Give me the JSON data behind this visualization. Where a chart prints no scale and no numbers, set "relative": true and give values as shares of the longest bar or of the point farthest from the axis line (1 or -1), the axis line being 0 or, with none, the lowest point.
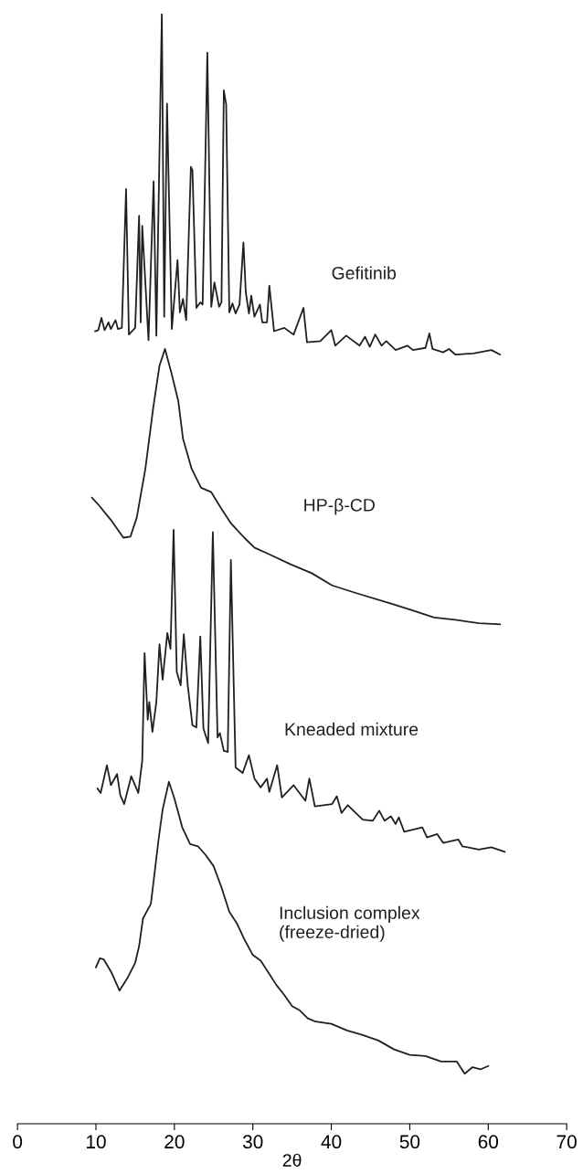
{
  "chart_data": {
    "type": "line",
    "relative": true,
    "xlabel": "2θ",
    "xlim": [
      0,
      70
    ],
    "xticks": [
      0,
      10,
      20,
      30,
      40,
      50,
      60,
      70
    ],
    "grid": false,
    "legend": false,
    "marker": "none",
    "line_style": "solid",
    "tick_labels": "x",
    "series": [
      {
        "name": "Gefitinib",
        "color": "#231f20",
        "x": [
          9.9,
          10.3,
          10.7,
          11.1,
          11.6,
          11.9,
          12.5,
          12.8,
          13.3,
          13.84,
          14.2,
          15.0,
          15.5,
          15.7,
          15.9,
          16.7,
          17.35,
          17.7,
          18.4,
          18.7,
          19.06,
          19.67,
          20.4,
          20.7,
          21.1,
          21.5,
          22.1,
          22.3,
          22.8,
          23.3,
          23.6,
          24.2,
          24.7,
          25.1,
          25.7,
          26.0,
          26.3,
          26.6,
          27.0,
          27.4,
          27.8,
          28.3,
          28.8,
          29.1,
          29.5,
          29.8,
          30.2,
          30.9,
          31.2,
          31.8,
          32.1,
          32.7,
          34.0,
          35.2,
          36.45,
          36.9,
          38.6,
          40.0,
          40.5,
          41.9,
          43.6,
          44.3,
          44.9,
          45.6,
          46.4,
          47.0,
          48.2,
          49.7,
          50.4,
          52.0,
          52.5,
          52.9,
          54.25,
          55.0,
          55.8,
          58.1,
          60.4,
          61.5
        ],
        "values": [
          0.714,
          0.715,
          0.726,
          0.715,
          0.722,
          0.716,
          0.724,
          0.716,
          0.717,
          0.842,
          0.711,
          0.717,
          0.818,
          0.722,
          0.809,
          0.706,
          0.849,
          0.71,
          1.0,
          0.727,
          0.919,
          0.716,
          0.778,
          0.731,
          0.743,
          0.724,
          0.862,
          0.859,
          0.735,
          0.74,
          0.738,
          0.965,
          0.736,
          0.758,
          0.736,
          0.74,
          0.931,
          0.918,
          0.731,
          0.739,
          0.73,
          0.738,
          0.794,
          0.749,
          0.73,
          0.746,
          0.727,
          0.738,
          0.722,
          0.722,
          0.755,
          0.714,
          0.717,
          0.711,
          0.735,
          0.704,
          0.705,
          0.715,
          0.701,
          0.71,
          0.701,
          0.709,
          0.7,
          0.711,
          0.701,
          0.705,
          0.697,
          0.701,
          0.697,
          0.699,
          0.712,
          0.698,
          0.695,
          0.698,
          0.693,
          0.694,
          0.697,
          0.693
        ]
      },
      {
        "name": "HP-β-CD",
        "color": "#231f20",
        "x": [
          9.5,
          10.4,
          11.9,
          13.5,
          14.4,
          15.2,
          16.3,
          17.3,
          18.1,
          18.8,
          19.6,
          20.5,
          21.1,
          22.2,
          23.4,
          24.7,
          26.0,
          27.2,
          28.9,
          30.2,
          32.1,
          34.8,
          37.5,
          40.1,
          43.2,
          47.4,
          50.1,
          53.1,
          55.8,
          58.8,
          61.5
        ],
        "values": [
          0.564,
          0.557,
          0.544,
          0.528,
          0.529,
          0.546,
          0.59,
          0.645,
          0.683,
          0.698,
          0.677,
          0.651,
          0.617,
          0.59,
          0.573,
          0.569,
          0.554,
          0.541,
          0.528,
          0.519,
          0.513,
          0.504,
          0.496,
          0.485,
          0.478,
          0.469,
          0.463,
          0.456,
          0.454,
          0.451,
          0.45
        ]
      },
      {
        "name": "Kneaded mixture",
        "color": "#231f20",
        "x": [
          10.2,
          10.6,
          11.4,
          11.9,
          12.7,
          13.1,
          13.6,
          14.5,
          15.4,
          15.9,
          16.2,
          16.6,
          16.8,
          17.2,
          17.7,
          18.1,
          18.5,
          19.1,
          19.5,
          19.9,
          20.3,
          20.8,
          21.2,
          21.7,
          22.3,
          22.8,
          23.3,
          23.7,
          24.3,
          24.9,
          25.5,
          25.8,
          26.3,
          26.8,
          27.2,
          27.8,
          28.7,
          29.5,
          30.2,
          31.0,
          31.8,
          32.1,
          33.1,
          33.7,
          35.2,
          36.7,
          37.2,
          37.9,
          40.1,
          40.7,
          41.3,
          42.1,
          44.0,
          45.3,
          46.1,
          46.8,
          47.6,
          48.2,
          48.6,
          49.3,
          51.6,
          52.2,
          53.5,
          54.25,
          56.2,
          56.7,
          58.8,
          60.4,
          62.1
        ],
        "values": [
          0.302,
          0.298,
          0.323,
          0.305,
          0.315,
          0.296,
          0.288,
          0.313,
          0.298,
          0.327,
          0.424,
          0.364,
          0.38,
          0.353,
          0.38,
          0.432,
          0.4,
          0.442,
          0.428,
          0.535,
          0.407,
          0.395,
          0.441,
          0.395,
          0.359,
          0.357,
          0.439,
          0.356,
          0.343,
          0.533,
          0.348,
          0.352,
          0.336,
          0.335,
          0.508,
          0.321,
          0.316,
          0.332,
          0.311,
          0.303,
          0.311,
          0.299,
          0.323,
          0.294,
          0.305,
          0.291,
          0.311,
          0.286,
          0.288,
          0.295,
          0.28,
          0.287,
          0.274,
          0.273,
          0.282,
          0.273,
          0.277,
          0.27,
          0.276,
          0.263,
          0.267,
          0.258,
          0.261,
          0.253,
          0.256,
          0.25,
          0.247,
          0.249,
          0.245
        ]
      },
      {
        "name": "Inclusion complex\n(freeze-dried)",
        "color": "#231f20",
        "x": [
          10.0,
          10.5,
          11.0,
          12.0,
          13.0,
          14.0,
          15.0,
          15.5,
          16.0,
          17.0,
          18.0,
          18.5,
          19.3,
          20.0,
          21.0,
          22.0,
          23.0,
          24.0,
          25.0,
          26.0,
          27.0,
          28.0,
          29.0,
          30.0,
          31.0,
          32.0,
          33.0,
          34.0,
          35.0,
          36.0,
          37.0,
          38.0,
          40.0,
          42.0,
          44.0,
          46.0,
          48.0,
          50.0,
          52.0,
          54.0,
          56.0,
          57.0,
          58.0,
          59.0,
          60.0
        ],
        "values": [
          0.141,
          0.149,
          0.148,
          0.136,
          0.12,
          0.131,
          0.145,
          0.16,
          0.185,
          0.198,
          0.257,
          0.283,
          0.308,
          0.293,
          0.267,
          0.252,
          0.25,
          0.242,
          0.232,
          0.213,
          0.191,
          0.18,
          0.165,
          0.152,
          0.147,
          0.136,
          0.125,
          0.116,
          0.106,
          0.102,
          0.095,
          0.092,
          0.09,
          0.084,
          0.08,
          0.075,
          0.067,
          0.062,
          0.061,
          0.056,
          0.056,
          0.045,
          0.051,
          0.049,
          0.052
        ]
      }
    ]
  }
}
